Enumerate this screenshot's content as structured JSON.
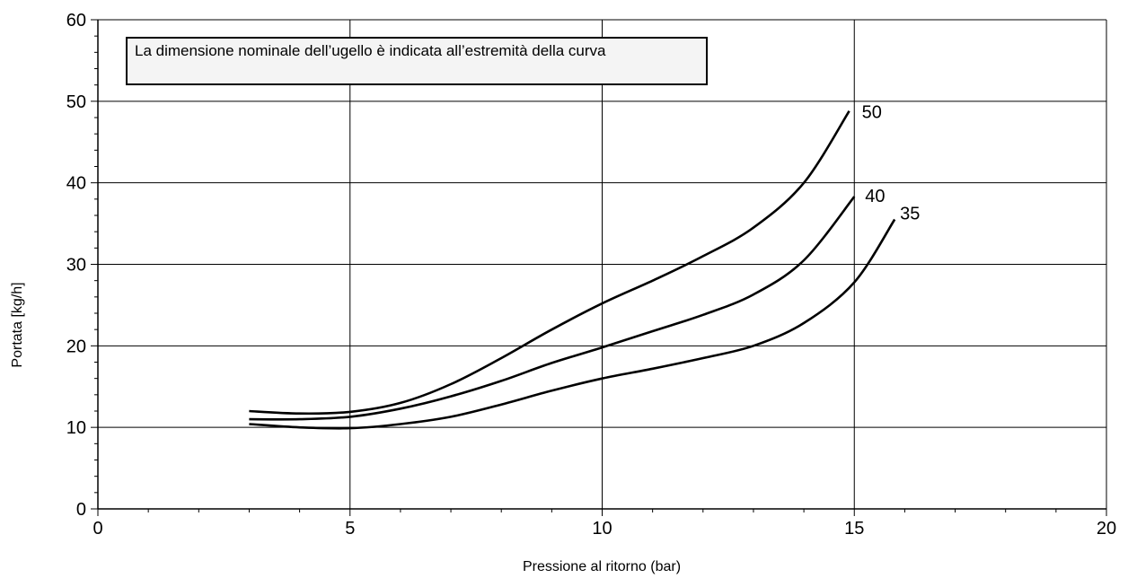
{
  "chart_data": {
    "type": "line",
    "title": "",
    "xlabel": "Pressione al ritorno  (bar)",
    "ylabel": "Portata [kg/h]",
    "xlim": [
      0,
      20
    ],
    "ylim": [
      0,
      60
    ],
    "x_ticks": [
      "0",
      "5",
      "10",
      "15",
      "20"
    ],
    "y_ticks": [
      "0",
      "10",
      "20",
      "30",
      "40",
      "50",
      "60"
    ],
    "grid": true,
    "annotation": "La dimensione nominale dell’ugello è indicata all’estremità della curva",
    "series": [
      {
        "name": "50",
        "x": [
          3,
          4,
          5,
          6,
          7,
          8,
          9,
          10,
          11,
          12,
          13,
          14,
          14.9
        ],
        "y": [
          12,
          11.7,
          11.9,
          13,
          15.3,
          18.5,
          22,
          25.2,
          28,
          31,
          34.5,
          40,
          48.8
        ]
      },
      {
        "name": "40",
        "x": [
          3,
          4,
          5,
          6,
          7,
          8,
          9,
          10,
          11,
          12,
          13,
          14,
          15
        ],
        "y": [
          11,
          11,
          11.3,
          12.3,
          13.8,
          15.7,
          17.9,
          19.8,
          21.8,
          23.8,
          26.3,
          30.5,
          38.3
        ]
      },
      {
        "name": "35",
        "x": [
          3,
          4,
          5,
          6,
          7,
          8,
          9,
          10,
          11,
          12,
          13,
          14,
          15,
          15.8
        ],
        "y": [
          10.4,
          10,
          9.9,
          10.4,
          11.3,
          12.8,
          14.5,
          16,
          17.2,
          18.5,
          20,
          22.8,
          27.8,
          35.5
        ]
      }
    ]
  }
}
